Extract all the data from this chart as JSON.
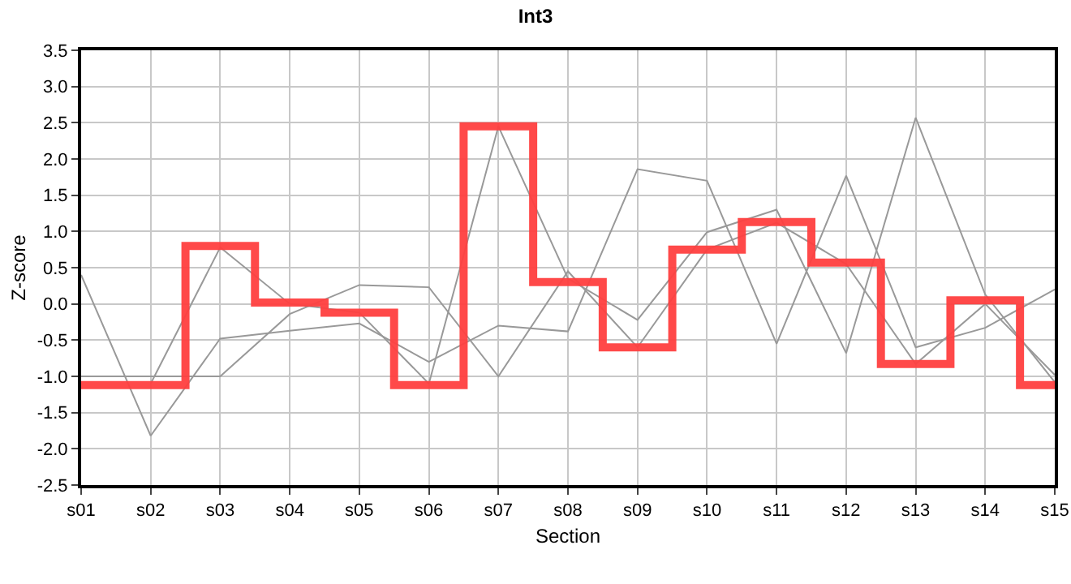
{
  "chart_data": {
    "type": "line",
    "title": "Int3",
    "xlabel": "Section",
    "ylabel": "Z-score",
    "categories": [
      "s01",
      "s02",
      "s03",
      "s04",
      "s05",
      "s06",
      "s07",
      "s08",
      "s09",
      "s10",
      "s11",
      "s12",
      "s13",
      "s14",
      "s15"
    ],
    "ylim": [
      -2.5,
      3.5
    ],
    "yticks": [
      {
        "value": -2.5,
        "label": "-2.5"
      },
      {
        "value": -2,
        "label": "-2.0"
      },
      {
        "value": -1.5,
        "label": "-1.5"
      },
      {
        "value": -1,
        "label": "-1.0"
      },
      {
        "value": -0.5,
        "label": "-0.5"
      },
      {
        "value": 0,
        "label": "0.0"
      },
      {
        "value": 0.5,
        "label": "0.5"
      },
      {
        "value": 1,
        "label": "1.0"
      },
      {
        "value": 1.5,
        "label": "1.5"
      },
      {
        "value": 2,
        "label": "2.0"
      },
      {
        "value": 2.5,
        "label": "2.5"
      },
      {
        "value": 3,
        "label": "3.0"
      },
      {
        "value": 3.5,
        "label": "3.5"
      }
    ],
    "grid": true,
    "marker": "none",
    "line_style": "solid",
    "series": [
      {
        "color": "#999999",
        "values": [
          0.4,
          -1.82,
          -0.48,
          -0.37,
          -0.27,
          -0.8,
          -0.3,
          -0.38,
          1.86,
          1.7,
          -0.55,
          1.77,
          -0.6,
          -0.33,
          0.2
        ]
      },
      {
        "color": "#999999",
        "values": [
          null,
          -1.1,
          0.78,
          0.0,
          -0.12,
          -1.1,
          2.45,
          0.35,
          -0.22,
          0.99,
          1.3,
          -0.68,
          2.57,
          0.13,
          -1.08
        ]
      },
      {
        "color": "#999999",
        "values": [
          -1.0,
          -1.0,
          -1.0,
          -0.14,
          0.26,
          0.23,
          -1.0,
          0.45,
          -0.6,
          0.75,
          1.12,
          0.55,
          -0.83,
          0.0,
          -0.98
        ]
      },
      {
        "type": "step",
        "color": "#ff4040",
        "values": [
          -1.12,
          -1.12,
          0.8,
          0.02,
          -0.12,
          -1.12,
          2.45,
          0.3,
          -0.6,
          0.75,
          1.13,
          0.57,
          -0.83,
          0.05,
          -1.12
        ]
      }
    ]
  }
}
